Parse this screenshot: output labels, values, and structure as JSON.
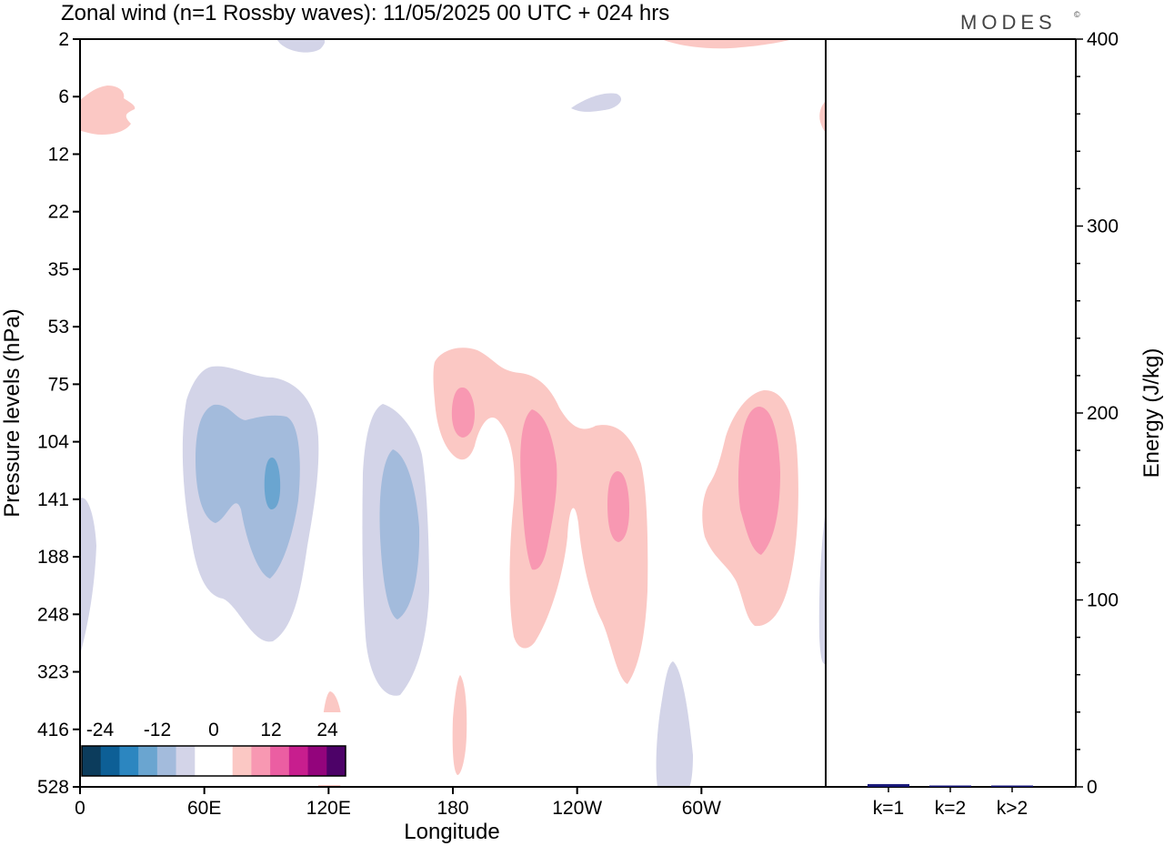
{
  "chart_data": {
    "type": "heatmap",
    "title": "Zonal wind (n=1 Rossby waves):  11/05/2025  00 UTC  + 024 hrs",
    "brand": "MODES",
    "brand_mark": "©",
    "xlabel": "Longitude",
    "ylabel": "Pressure levels (hPa)",
    "x_ticks": [
      "0",
      "60E",
      "120E",
      "180",
      "120W",
      "60W"
    ],
    "x_tick_values": [
      0,
      60,
      120,
      180,
      240,
      300
    ],
    "xlim": [
      0,
      360
    ],
    "y_ticks": [
      "2",
      "6",
      "12",
      "22",
      "35",
      "53",
      "75",
      "104",
      "141",
      "188",
      "248",
      "323",
      "416",
      "528"
    ],
    "colorbar": {
      "tick_labels": [
        "-24",
        "-12",
        "0",
        "12",
        "24"
      ],
      "colors": [
        "#0c3c5c",
        "#0d5f96",
        "#2c86c0",
        "#6aa5d0",
        "#a3bbdc",
        "#d3d4e8",
        "#ffffff",
        "#ffffff",
        "#fbc8c4",
        "#f898b2",
        "#eb5ea2",
        "#c81e8e",
        "#93047c",
        "#4d0268"
      ]
    },
    "contours": {
      "neg1": "#d3d4e8",
      "neg2": "#a3bbdc",
      "neg3": "#6aa5d0",
      "pos1": "#fbc8c4",
      "pos2": "#f898b2"
    },
    "energy_panel": {
      "ylabel": "Energy (J/kg)",
      "y_ticks": [
        "0",
        "100",
        "200",
        "300",
        "400"
      ],
      "y_tick_values": [
        0,
        100,
        200,
        300,
        400
      ],
      "ylim": [
        0,
        400
      ],
      "categories": [
        "k=1",
        "k=2",
        "k>2"
      ],
      "values": [
        1.5,
        0.3,
        0.2
      ],
      "bar_color": "#1a1a7a"
    }
  }
}
